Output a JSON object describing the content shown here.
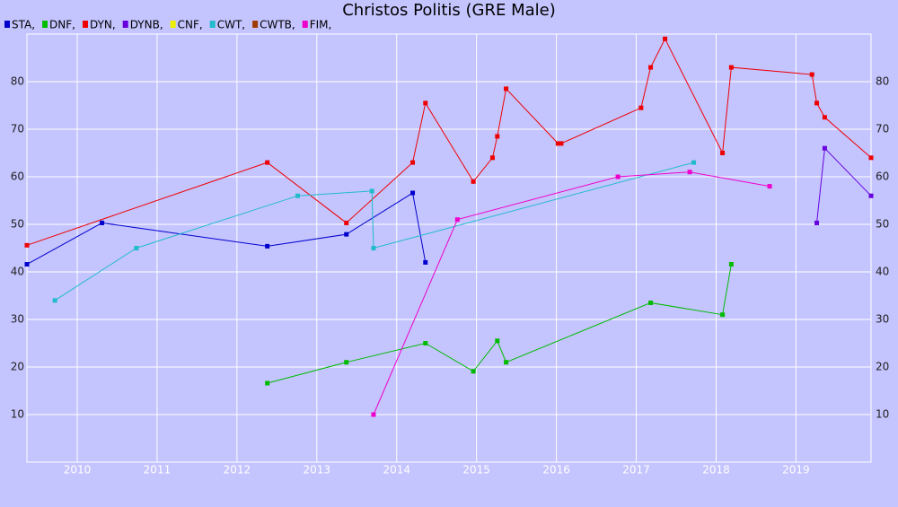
{
  "chart_data": {
    "type": "line",
    "title": "Christos Politis (GRE Male)",
    "xlim": [
      2009.37,
      2019.94
    ],
    "xticks": [
      2010,
      2011,
      2012,
      2013,
      2014,
      2015,
      2016,
      2017,
      2018,
      2019
    ],
    "ylim": [
      0,
      90
    ],
    "yticks": [
      10,
      20,
      30,
      40,
      50,
      60,
      70,
      80
    ],
    "grid": true,
    "series": [
      {
        "name": "STA,",
        "color": "#0000cc",
        "x": [
          2009.37,
          2010.31,
          2012.38,
          2013.37,
          2014.2,
          2014.36
        ],
        "values": [
          41.6,
          50.3,
          45.4,
          47.9,
          56.6,
          42
        ]
      },
      {
        "name": "DNF,",
        "color": "#00bb00",
        "x": [
          2012.38,
          2013.37,
          2014.36,
          2014.96,
          2015.26,
          2015.37,
          2017.18,
          2018.08,
          2018.19
        ],
        "values": [
          16.6,
          21,
          25,
          19.1,
          25.5,
          21,
          33.5,
          31,
          41.6
        ]
      },
      {
        "name": "DYN,",
        "color": "#ee0000",
        "x": [
          2009.37,
          2012.38,
          2013.37,
          2014.2,
          2014.36,
          2014.96,
          2015.2,
          2015.26,
          2015.37,
          2016.02,
          2016.06,
          2017.06,
          2017.18,
          2017.36,
          2018.08,
          2018.19,
          2019.2,
          2019.26,
          2019.36,
          2019.94
        ],
        "values": [
          45.6,
          63,
          50.3,
          63,
          75.5,
          59,
          64,
          68.5,
          78.5,
          67,
          67,
          74.5,
          83,
          89,
          65,
          83,
          81.5,
          75.5,
          72.5,
          64
        ]
      },
      {
        "name": "DYNB,",
        "color": "#6600dd",
        "x": [
          2019.26,
          2019.36,
          2019.94
        ],
        "values": [
          50.3,
          66,
          56
        ]
      },
      {
        "name": "CNF,",
        "color": "#eeee00",
        "x": [],
        "values": []
      },
      {
        "name": "CWT,",
        "color": "#22bbcc",
        "x": [
          2009.72,
          2010.74,
          2012.76,
          2013.69,
          2013.71,
          2017.72
        ],
        "values": [
          34,
          45,
          56,
          57,
          45,
          63
        ]
      },
      {
        "name": "CWTB,",
        "color": "#a03c00",
        "x": [],
        "values": []
      },
      {
        "name": "FIM,",
        "color": "#ee00cc",
        "x": [
          2013.71,
          2014.76,
          2016.77,
          2017.67,
          2018.67
        ],
        "values": [
          10,
          51,
          60,
          61,
          58
        ]
      }
    ]
  }
}
